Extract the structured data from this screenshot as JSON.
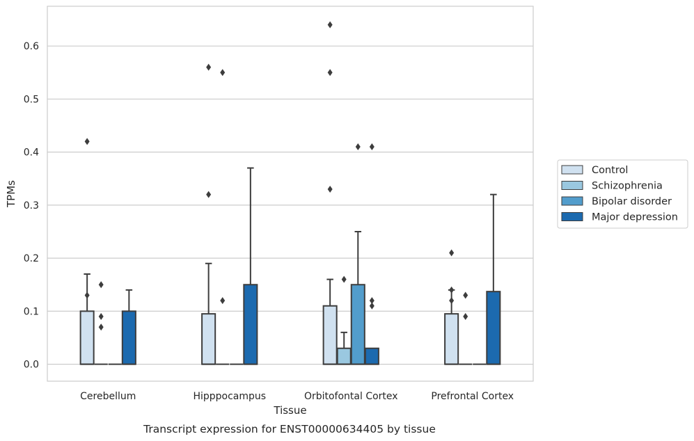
{
  "caption": "Transcript expression for ENST00000634405 by tissue",
  "chart_data": {
    "type": "box",
    "xlabel": "Tissue",
    "ylabel": "TPMs",
    "ylim": [
      -0.032,
      0.675
    ],
    "yticks": [
      0.0,
      0.1,
      0.2,
      0.3,
      0.4,
      0.5,
      0.6
    ],
    "ytick_labels": [
      "0.0",
      "0.1",
      "0.2",
      "0.3",
      "0.4",
      "0.5",
      "0.6"
    ],
    "grid": true,
    "legend_position": "right",
    "categories": [
      "Cerebellum",
      "Hipppocampus",
      "Orbitofontal Cortex",
      "Prefrontal Cortex"
    ],
    "series": [
      {
        "name": "Control",
        "color": "#d0e1f0",
        "boxes": [
          {
            "q1": 0.0,
            "median": 0.0,
            "q3": 0.1,
            "whisker_low": 0.0,
            "whisker_high": 0.17,
            "outliers": [
              0.42,
              0.13
            ]
          },
          {
            "q1": 0.0,
            "median": 0.0,
            "q3": 0.095,
            "whisker_low": 0.0,
            "whisker_high": 0.19,
            "outliers": [
              0.56,
              0.32
            ]
          },
          {
            "q1": 0.0,
            "median": 0.0,
            "q3": 0.11,
            "whisker_low": 0.0,
            "whisker_high": 0.16,
            "outliers": [
              0.64,
              0.55,
              0.33
            ]
          },
          {
            "q1": 0.0,
            "median": 0.0,
            "q3": 0.095,
            "whisker_low": 0.0,
            "whisker_high": 0.14,
            "outliers": [
              0.21,
              0.14,
              0.12
            ]
          }
        ]
      },
      {
        "name": "Schizophrenia",
        "color": "#9ac8e0",
        "boxes": [
          {
            "q1": 0.0,
            "median": 0.0,
            "q3": 0.0,
            "whisker_low": 0.0,
            "whisker_high": 0.0,
            "outliers": [
              0.15,
              0.09,
              0.07
            ]
          },
          {
            "q1": 0.0,
            "median": 0.0,
            "q3": 0.0,
            "whisker_low": 0.0,
            "whisker_high": 0.0,
            "outliers": [
              0.55,
              0.12
            ]
          },
          {
            "q1": 0.0,
            "median": 0.0,
            "q3": 0.03,
            "whisker_low": 0.0,
            "whisker_high": 0.06,
            "outliers": [
              0.16
            ]
          },
          {
            "q1": 0.0,
            "median": 0.0,
            "q3": 0.0,
            "whisker_low": 0.0,
            "whisker_high": 0.0,
            "outliers": [
              0.13,
              0.09
            ]
          }
        ]
      },
      {
        "name": "Bipolar disorder",
        "color": "#529dcc",
        "boxes": [
          {
            "q1": 0.0,
            "median": 0.0,
            "q3": 0.0,
            "whisker_low": 0.0,
            "whisker_high": 0.0,
            "outliers": []
          },
          {
            "q1": 0.0,
            "median": 0.0,
            "q3": 0.0,
            "whisker_low": 0.0,
            "whisker_high": 0.0,
            "outliers": []
          },
          {
            "q1": 0.0,
            "median": 0.0,
            "q3": 0.15,
            "whisker_low": 0.0,
            "whisker_high": 0.25,
            "outliers": [
              0.41
            ]
          },
          {
            "q1": 0.0,
            "median": 0.0,
            "q3": 0.0,
            "whisker_low": 0.0,
            "whisker_high": 0.0,
            "outliers": []
          }
        ]
      },
      {
        "name": "Major depression",
        "color": "#1c6aaf",
        "boxes": [
          {
            "q1": 0.0,
            "median": 0.0,
            "q3": 0.1,
            "whisker_low": 0.0,
            "whisker_high": 0.14,
            "outliers": []
          },
          {
            "q1": 0.0,
            "median": 0.0,
            "q3": 0.15,
            "whisker_low": 0.0,
            "whisker_high": 0.37,
            "outliers": []
          },
          {
            "q1": 0.0,
            "median": 0.0,
            "q3": 0.03,
            "whisker_low": 0.0,
            "whisker_high": 0.03,
            "outliers": [
              0.41,
              0.12,
              0.11
            ]
          },
          {
            "q1": 0.0,
            "median": 0.0,
            "q3": 0.137,
            "whisker_low": 0.0,
            "whisker_high": 0.32,
            "outliers": []
          }
        ]
      }
    ]
  }
}
